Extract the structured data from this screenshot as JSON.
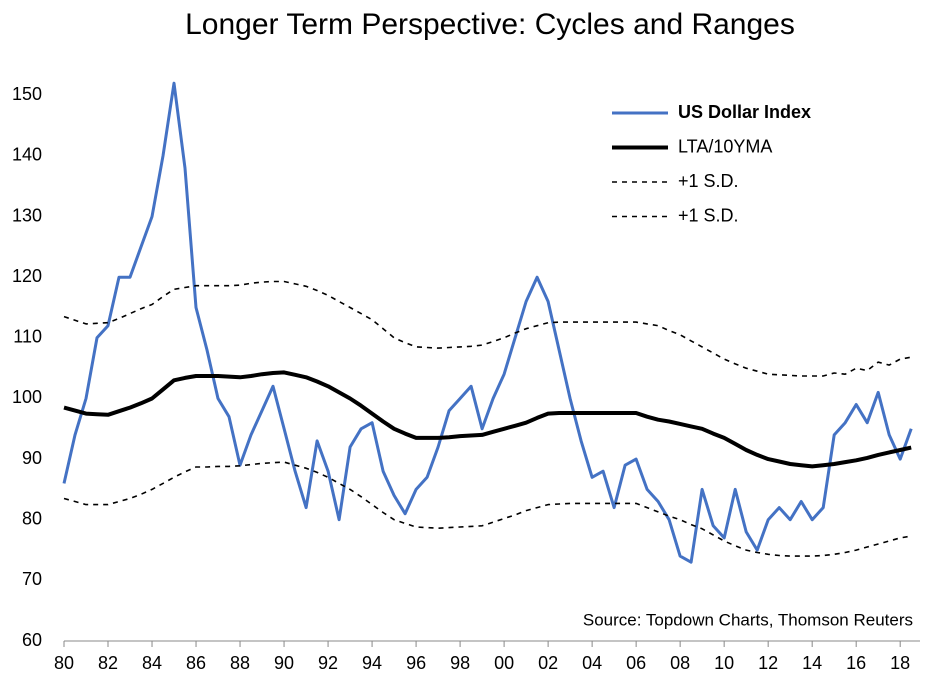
{
  "chart_data": {
    "type": "line",
    "title": "Longer Term Perspective: Cycles and Ranges",
    "annotation": "Source: Topdown Charts, Thomson Reuters",
    "x": [
      1980,
      1980.5,
      1981,
      1981.5,
      1982,
      1982.5,
      1983,
      1983.5,
      1984,
      1984.5,
      1985,
      1985.5,
      1986,
      1986.5,
      1987,
      1987.5,
      1988,
      1988.5,
      1989,
      1989.5,
      1990,
      1990.5,
      1991,
      1991.5,
      1992,
      1992.5,
      1993,
      1993.5,
      1994,
      1994.5,
      1995,
      1995.5,
      1996,
      1996.5,
      1997,
      1997.5,
      1998,
      1998.5,
      1999,
      1999.5,
      2000,
      2000.5,
      2001,
      2001.5,
      2002,
      2002.5,
      2003,
      2003.5,
      2004,
      2004.5,
      2005,
      2005.5,
      2006,
      2006.5,
      2007,
      2007.5,
      2008,
      2008.5,
      2009,
      2009.5,
      2010,
      2010.5,
      2011,
      2011.5,
      2012,
      2012.5,
      2013,
      2013.5,
      2014,
      2014.5,
      2015,
      2015.5,
      2016,
      2016.5,
      2017,
      2017.5,
      2018,
      2018.5
    ],
    "series": [
      {
        "name": "US Dollar Index",
        "color": "#4472c4",
        "dashed": false,
        "values": [
          86,
          94,
          100,
          110,
          112,
          120,
          120,
          125,
          130,
          140,
          152,
          138,
          115,
          108,
          100,
          97,
          89,
          94,
          98,
          102,
          95,
          88,
          82,
          93,
          88,
          80,
          92,
          95,
          96,
          88,
          84,
          81,
          85,
          87,
          92,
          98,
          100,
          102,
          95,
          100,
          104,
          110,
          116,
          120,
          116,
          108,
          100,
          93,
          87,
          88,
          82,
          89,
          90,
          85,
          83,
          80,
          74,
          73,
          85,
          79,
          77,
          85,
          78,
          75,
          80,
          82,
          80,
          83,
          80,
          82,
          94,
          96,
          99,
          96,
          101,
          94,
          90,
          95
        ]
      },
      {
        "name": "LTA/10YMA",
        "color": "#000000",
        "dashed": false,
        "values": [
          98.5,
          98,
          97.5,
          97.4,
          97.3,
          97.9,
          98.5,
          99.2,
          100,
          101.5,
          103,
          103.4,
          103.7,
          103.7,
          103.7,
          103.6,
          103.5,
          103.7,
          104,
          104.2,
          104.3,
          103.9,
          103.5,
          102.8,
          102,
          101,
          100,
          98.8,
          97.5,
          96.2,
          95,
          94.2,
          93.5,
          93.5,
          93.5,
          93.6,
          93.8,
          93.9,
          94,
          94.5,
          95,
          95.5,
          96,
          96.8,
          97.5,
          97.6,
          97.6,
          97.6,
          97.6,
          97.6,
          97.6,
          97.6,
          97.6,
          97,
          96.5,
          96.2,
          95.8,
          95.4,
          95,
          94.2,
          93.5,
          92.5,
          91.5,
          90.7,
          90,
          89.6,
          89.2,
          89,
          88.8,
          89,
          89.2,
          89.5,
          89.8,
          90.2,
          90.7,
          91.1,
          91.5,
          91.9
        ]
      },
      {
        "name": "+1 S.D.",
        "color": "#000000",
        "dashed": true,
        "values": [
          113.5,
          112.9,
          112.3,
          112.4,
          112.5,
          113.2,
          114,
          114.8,
          115.5,
          116.8,
          118,
          118.3,
          118.6,
          118.6,
          118.6,
          118.6,
          118.7,
          119,
          119.2,
          119.3,
          119.3,
          118.9,
          118.5,
          117.8,
          117,
          116,
          115,
          114,
          113,
          111.5,
          110,
          109.2,
          108.5,
          108.4,
          108.3,
          108.4,
          108.5,
          108.6,
          108.8,
          109.4,
          110,
          110.8,
          111.5,
          112,
          112.5,
          112.6,
          112.6,
          112.6,
          112.6,
          112.6,
          112.6,
          112.6,
          112.6,
          112.3,
          112,
          111.2,
          110.5,
          109.5,
          108.5,
          107.5,
          106.5,
          105.7,
          105,
          104.5,
          104,
          103.9,
          103.8,
          103.7,
          103.7,
          103.7,
          104.2,
          104,
          105,
          104.6,
          106,
          105.5,
          106.5,
          106.8
        ]
      },
      {
        "name": "+1 S.D.",
        "color": "#000000",
        "dashed": true,
        "values": [
          83.5,
          83,
          82.5,
          82.5,
          82.5,
          83,
          83.5,
          84.2,
          85,
          86,
          87,
          87.9,
          88.7,
          88.7,
          88.8,
          88.8,
          88.9,
          89.1,
          89.3,
          89.4,
          89.5,
          89,
          88.5,
          87.8,
          87,
          86,
          85,
          83.8,
          82.5,
          81.2,
          80,
          79.4,
          78.8,
          78.7,
          78.6,
          78.7,
          78.8,
          78.9,
          79,
          79.6,
          80.2,
          80.8,
          81.5,
          82,
          82.5,
          82.6,
          82.7,
          82.7,
          82.7,
          82.7,
          82.7,
          82.7,
          82.7,
          82,
          81.3,
          80.6,
          80,
          79.2,
          78.5,
          77.5,
          76.5,
          75.7,
          75,
          74.6,
          74.3,
          74.1,
          74,
          74,
          74,
          74.1,
          74.3,
          74.6,
          75,
          75.5,
          76,
          76.5,
          77,
          77.3
        ]
      }
    ],
    "xlim": [
      1980,
      2018.9
    ],
    "xticks": [
      {
        "value": 1980,
        "label": "80"
      },
      {
        "value": 1982,
        "label": "82"
      },
      {
        "value": 1984,
        "label": "84"
      },
      {
        "value": 1986,
        "label": "86"
      },
      {
        "value": 1988,
        "label": "88"
      },
      {
        "value": 1990,
        "label": "90"
      },
      {
        "value": 1992,
        "label": "92"
      },
      {
        "value": 1994,
        "label": "94"
      },
      {
        "value": 1996,
        "label": "96"
      },
      {
        "value": 1998,
        "label": "98"
      },
      {
        "value": 2000,
        "label": "00"
      },
      {
        "value": 2002,
        "label": "02"
      },
      {
        "value": 2004,
        "label": "04"
      },
      {
        "value": 2006,
        "label": "06"
      },
      {
        "value": 2008,
        "label": "08"
      },
      {
        "value": 2010,
        "label": "10"
      },
      {
        "value": 2012,
        "label": "12"
      },
      {
        "value": 2014,
        "label": "14"
      },
      {
        "value": 2016,
        "label": "16"
      },
      {
        "value": 2018,
        "label": "18"
      }
    ],
    "ylim": [
      60,
      155
    ],
    "yticks": [
      60,
      70,
      80,
      90,
      100,
      110,
      120,
      130,
      140,
      150
    ],
    "grid": false,
    "legend": "upper-right"
  }
}
